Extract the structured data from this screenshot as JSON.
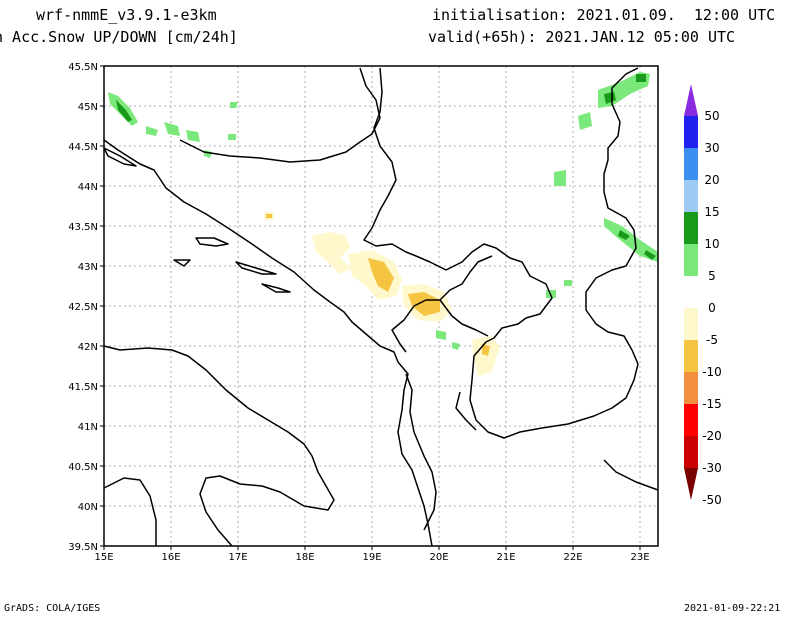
{
  "header": {
    "model": "wrf-nmmE_v3.9.1-e3km",
    "variable": "n Acc.Snow UP/DOWN [cm/24h]",
    "initialisation": "initialisation: 2021.01.09.  12:00 UTC",
    "valid": "valid(+65h): 2021.JAN.12 05:00 UTC"
  },
  "axes": {
    "lat_labels": [
      "45.5N",
      "45N",
      "44.5N",
      "44N",
      "43.5N",
      "43N",
      "42.5N",
      "42N",
      "41.5N",
      "41N",
      "40.5N",
      "40N",
      "39.5N"
    ],
    "lon_labels": [
      "15E",
      "16E",
      "17E",
      "18E",
      "19E",
      "20E",
      "21E",
      "22E",
      "23E"
    ]
  },
  "colorbar": {
    "labels": [
      "50",
      "30",
      "20",
      "15",
      "10",
      "5",
      "0",
      "-5",
      "-10",
      "-15",
      "-20",
      "-30",
      "-50"
    ],
    "colors": [
      "#8a2be2",
      "#2222ee",
      "#3c8ff0",
      "#9ccaf5",
      "#1a9a1a",
      "#7ae87a",
      "#ffffff",
      "#fff8cc",
      "#f5c542",
      "#f39040",
      "#ff0000",
      "#cc0000",
      "#7a0000"
    ]
  },
  "footer": {
    "source": "GrADS: COLA/IGES",
    "timestamp": "2021-01-09-22:21"
  }
}
